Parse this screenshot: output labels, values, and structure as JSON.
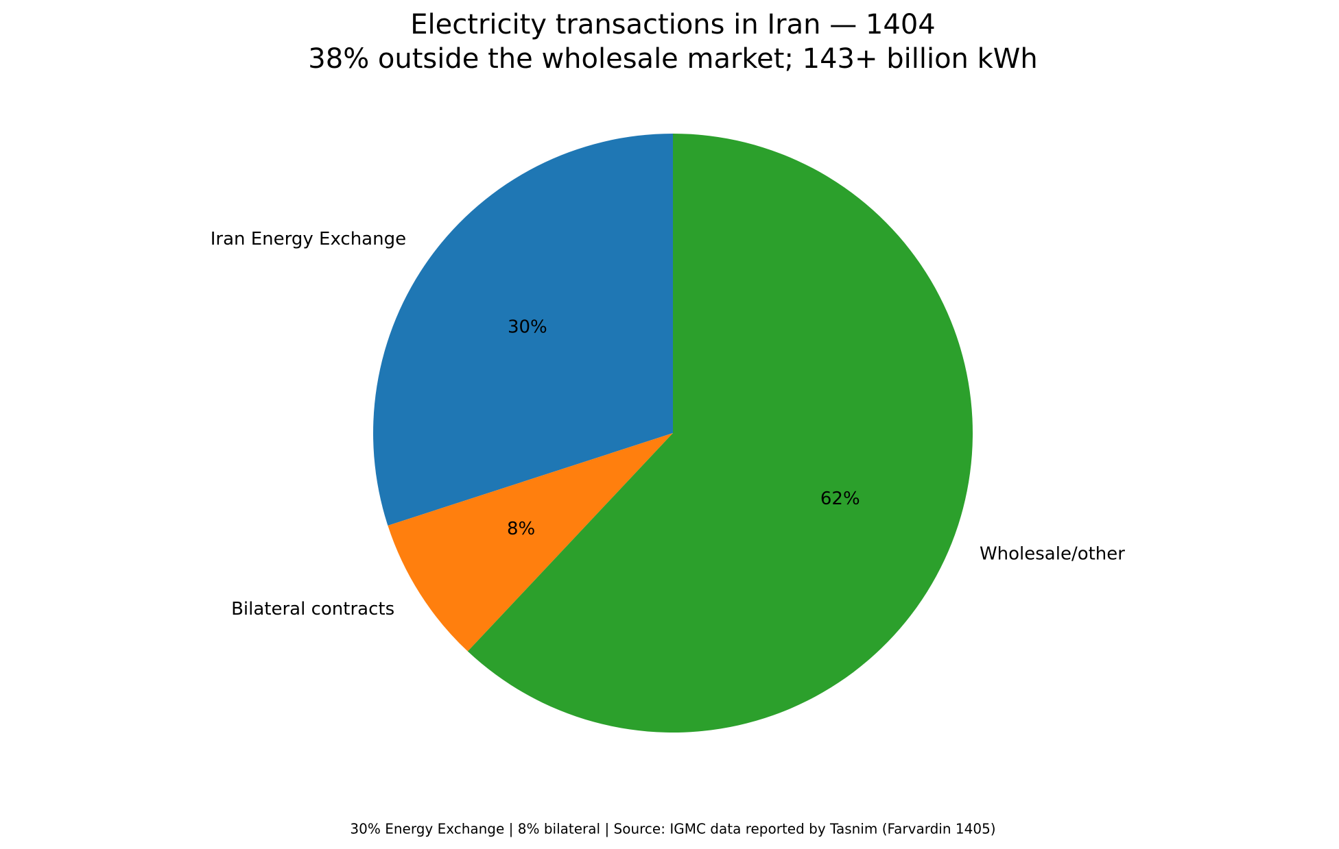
{
  "chart_data": {
    "type": "pie",
    "title": "Electricity transactions in Iran — 1404",
    "subtitle": "38% outside the wholesale market; 143+ billion kWh",
    "categories": [
      "Iran Energy Exchange",
      "Bilateral contracts",
      "Wholesale/other"
    ],
    "values": [
      30,
      8,
      62
    ],
    "value_labels": [
      "30%",
      "8%",
      "62%"
    ],
    "colors": [
      "#1f77b4",
      "#ff7f0e",
      "#2ca02c"
    ],
    "start_angle": 90,
    "caption": "30% Energy Exchange | 8% bilateral | Source: IGMC data reported by Tasnim (Farvardin 1405)"
  }
}
